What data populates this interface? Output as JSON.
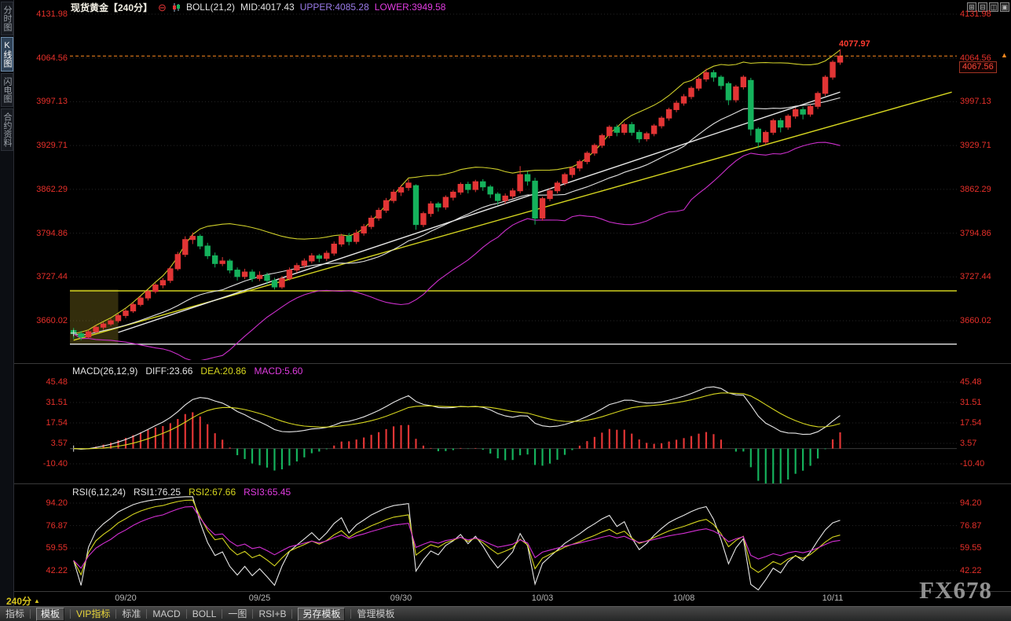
{
  "window": {
    "layout_icons": [
      {
        "name": "quad-layout-icon",
        "glyph": "⊞"
      },
      {
        "name": "horizontal-split-icon",
        "glyph": "⊟"
      },
      {
        "name": "vertical-split-icon",
        "glyph": "◫"
      },
      {
        "name": "single-view-icon",
        "glyph": "▣"
      }
    ]
  },
  "sidebar": {
    "tabs": [
      {
        "key": "time-chart",
        "label": "分时图",
        "selected": false
      },
      {
        "key": "kline-chart",
        "label": "K线图",
        "selected": true
      },
      {
        "key": "lightning-chart",
        "label": "闪电图",
        "selected": false
      },
      {
        "key": "contract-info",
        "label": "合约资料",
        "selected": false
      }
    ]
  },
  "header": {
    "title": "现货黄金【240分】",
    "collapse_glyph": "⊖",
    "indicator": {
      "name": "BOLL(21,2)",
      "mid_label": "MID:4017.43",
      "upper_label": "UPPER:4085.28",
      "lower_label": "LOWER:3949.58"
    }
  },
  "macd_header": {
    "name": "MACD(26,12,9)",
    "diff_label": "DIFF:23.66",
    "dea_label": "DEA:20.86",
    "macd_label": "MACD:5.60"
  },
  "rsi_header": {
    "name": "RSI(6,12,24)",
    "rsi1_label": "RSI1:76.25",
    "rsi2_label": "RSI2:67.66",
    "rsi3_label": "RSI3:65.45"
  },
  "price_badge": {
    "value": "4067.56",
    "arrow_glyph": "▲"
  },
  "annotations": {
    "high_label": "4077.97"
  },
  "status_bar": {
    "period": "240分",
    "arrow_glyph": "▲"
  },
  "watermark": "FX678",
  "toolbar": {
    "items": [
      {
        "key": "indicators",
        "label": "指标"
      },
      {
        "key": "templates",
        "label": "模板",
        "style": "button"
      },
      {
        "key": "vip-indicators",
        "label": "VIP指标",
        "style": "vip"
      },
      {
        "key": "standard",
        "label": "标准"
      },
      {
        "key": "macd",
        "label": "MACD"
      },
      {
        "key": "boll",
        "label": "BOLL"
      },
      {
        "key": "one-chart",
        "label": "一图"
      },
      {
        "key": "rsi-b",
        "label": "RSI+B"
      },
      {
        "key": "save-template",
        "label": "另存模板",
        "style": "button"
      },
      {
        "key": "manage-templates",
        "label": "管理模板"
      }
    ]
  },
  "chart_data": {
    "type": "candlestick",
    "symbol": "现货黄金",
    "period": "240分",
    "last_price": 4067.56,
    "session_high": 4077.97,
    "price_axis_range": [
      3660.02,
      4131.98
    ],
    "price_axis_ticks": [
      "4131.98",
      "4064.56",
      "3997.13",
      "3929.71",
      "3862.29",
      "3794.86",
      "3727.44",
      "3660.02"
    ],
    "x_ticks": [
      {
        "index": 7,
        "label": "09/20"
      },
      {
        "index": 25,
        "label": "09/25"
      },
      {
        "index": 44,
        "label": "09/30"
      },
      {
        "index": 63,
        "label": "10/03"
      },
      {
        "index": 82,
        "label": "10/08"
      },
      {
        "index": 102,
        "label": "10/11"
      }
    ],
    "boll": {
      "period": 21,
      "width": 2,
      "mid": 4017.43,
      "upper": 4085.28,
      "lower": 3949.58
    },
    "macd": {
      "fast": 12,
      "slow": 26,
      "signal": 9,
      "diff": 23.66,
      "dea": 20.86,
      "macd": 5.6,
      "axis_ticks": [
        "45.48",
        "31.51",
        "17.54",
        "3.57",
        "-10.40"
      ]
    },
    "rsi": {
      "periods": [
        6,
        12,
        24
      ],
      "rsi1": 76.25,
      "rsi2": 67.66,
      "rsi3": 65.45,
      "axis_ticks": [
        "94.20",
        "76.87",
        "59.55",
        "42.22"
      ]
    },
    "colors": {
      "up": "#e23535",
      "down": "#15b25c",
      "boll_upper": "#cfcf2a",
      "boll_mid": "#e0e0e0",
      "boll_lower": "#cc2fcc",
      "diff": "#e8e8e8",
      "dea": "#d6d61f",
      "rsi1": "#e8e8e8",
      "rsi2": "#d6d61f",
      "rsi3": "#d42fd4",
      "axis_text": "#e8302a",
      "last_price_line": "#ff8b1f",
      "trend_yellow": "#d6d620",
      "trend_white": "#e8e8e8"
    },
    "overlays": {
      "hlines": [
        {
          "price": 3706,
          "color": "#cfcf1f"
        },
        {
          "price": 3624,
          "color": "#e8e8e8"
        }
      ],
      "trendlines": [
        {
          "from": [
            0,
            3630
          ],
          "to": [
            118,
            4012
          ],
          "color": "#d6d620"
        },
        {
          "from": [
            6,
            3642
          ],
          "to": [
            103,
            4012
          ],
          "color": "#e8e8e8"
        }
      ],
      "zone": {
        "from_index": 0,
        "to_index": 5.5,
        "price_top": 3708,
        "price_bottom": 3624,
        "color": "rgba(170,150,40,0.30)"
      },
      "markers": [
        {
          "panel": "main",
          "index": 0,
          "value": 3641
        },
        {
          "panel": "macd",
          "index": 0,
          "value": 0
        }
      ]
    },
    "candles": [
      [
        3645,
        3649,
        3632,
        3640
      ],
      [
        3640,
        3644,
        3630,
        3635
      ],
      [
        3635,
        3646,
        3633,
        3643
      ],
      [
        3643,
        3653,
        3641,
        3650
      ],
      [
        3650,
        3658,
        3646,
        3655
      ],
      [
        3655,
        3663,
        3652,
        3660
      ],
      [
        3660,
        3671,
        3657,
        3668
      ],
      [
        3668,
        3678,
        3664,
        3675
      ],
      [
        3675,
        3688,
        3672,
        3685
      ],
      [
        3685,
        3698,
        3682,
        3695
      ],
      [
        3695,
        3708,
        3691,
        3705
      ],
      [
        3705,
        3718,
        3702,
        3715
      ],
      [
        3715,
        3726,
        3710,
        3722
      ],
      [
        3722,
        3744,
        3718,
        3740
      ],
      [
        3740,
        3766,
        3737,
        3762
      ],
      [
        3762,
        3790,
        3758,
        3785
      ],
      [
        3785,
        3796,
        3778,
        3790
      ],
      [
        3790,
        3793,
        3770,
        3775
      ],
      [
        3775,
        3780,
        3755,
        3760
      ],
      [
        3760,
        3765,
        3742,
        3748
      ],
      [
        3748,
        3758,
        3744,
        3752
      ],
      [
        3752,
        3755,
        3733,
        3738
      ],
      [
        3738,
        3742,
        3722,
        3728
      ],
      [
        3728,
        3740,
        3724,
        3735
      ],
      [
        3735,
        3739,
        3720,
        3725
      ],
      [
        3725,
        3736,
        3721,
        3730
      ],
      [
        3730,
        3734,
        3716,
        3722
      ],
      [
        3722,
        3726,
        3708,
        3712
      ],
      [
        3712,
        3729,
        3709,
        3725
      ],
      [
        3725,
        3742,
        3722,
        3738
      ],
      [
        3738,
        3749,
        3734,
        3745
      ],
      [
        3745,
        3756,
        3741,
        3752
      ],
      [
        3752,
        3764,
        3748,
        3760
      ],
      [
        3760,
        3763,
        3750,
        3756
      ],
      [
        3756,
        3768,
        3752,
        3764
      ],
      [
        3764,
        3782,
        3760,
        3778
      ],
      [
        3778,
        3794,
        3774,
        3790
      ],
      [
        3790,
        3795,
        3776,
        3782
      ],
      [
        3782,
        3800,
        3778,
        3795
      ],
      [
        3795,
        3809,
        3791,
        3805
      ],
      [
        3805,
        3822,
        3801,
        3818
      ],
      [
        3818,
        3834,
        3814,
        3830
      ],
      [
        3830,
        3849,
        3826,
        3845
      ],
      [
        3845,
        3862,
        3841,
        3858
      ],
      [
        3858,
        3869,
        3852,
        3865
      ],
      [
        3865,
        3878,
        3860,
        3872
      ],
      [
        3868,
        3870,
        3800,
        3808
      ],
      [
        3808,
        3828,
        3804,
        3825
      ],
      [
        3825,
        3844,
        3820,
        3840
      ],
      [
        3840,
        3843,
        3828,
        3835
      ],
      [
        3835,
        3853,
        3831,
        3850
      ],
      [
        3850,
        3861,
        3845,
        3858
      ],
      [
        3858,
        3873,
        3854,
        3870
      ],
      [
        3870,
        3874,
        3856,
        3862
      ],
      [
        3862,
        3877,
        3858,
        3874
      ],
      [
        3874,
        3878,
        3860,
        3866
      ],
      [
        3866,
        3869,
        3849,
        3855
      ],
      [
        3855,
        3858,
        3838,
        3845
      ],
      [
        3845,
        3856,
        3840,
        3852
      ],
      [
        3852,
        3864,
        3848,
        3860
      ],
      [
        3860,
        3898,
        3856,
        3885
      ],
      [
        3885,
        3890,
        3868,
        3875
      ],
      [
        3875,
        3880,
        3808,
        3818
      ],
      [
        3818,
        3851,
        3814,
        3848
      ],
      [
        3848,
        3864,
        3844,
        3860
      ],
      [
        3860,
        3875,
        3856,
        3872
      ],
      [
        3872,
        3888,
        3868,
        3885
      ],
      [
        3885,
        3898,
        3880,
        3895
      ],
      [
        3895,
        3908,
        3890,
        3905
      ],
      [
        3905,
        3921,
        3901,
        3918
      ],
      [
        3918,
        3933,
        3914,
        3930
      ],
      [
        3930,
        3948,
        3926,
        3945
      ],
      [
        3945,
        3961,
        3941,
        3958
      ],
      [
        3958,
        3962,
        3944,
        3950
      ],
      [
        3950,
        3965,
        3946,
        3962
      ],
      [
        3962,
        3966,
        3945,
        3950
      ],
      [
        3950,
        3954,
        3934,
        3940
      ],
      [
        3940,
        3951,
        3936,
        3948
      ],
      [
        3948,
        3963,
        3944,
        3960
      ],
      [
        3960,
        3975,
        3956,
        3972
      ],
      [
        3972,
        3988,
        3968,
        3985
      ],
      [
        3985,
        3999,
        3981,
        3995
      ],
      [
        3995,
        4009,
        3991,
        4005
      ],
      [
        4005,
        4021,
        4001,
        4018
      ],
      [
        4018,
        4035,
        4014,
        4032
      ],
      [
        4032,
        4048,
        4028,
        4042
      ],
      [
        4042,
        4046,
        4028,
        4035
      ],
      [
        4035,
        4038,
        4016,
        4022
      ],
      [
        4025,
        4028,
        3992,
        4000
      ],
      [
        4000,
        4023,
        3996,
        4020
      ],
      [
        4020,
        4038,
        4016,
        4035
      ],
      [
        4030,
        4034,
        3945,
        3955
      ],
      [
        3955,
        3958,
        3926,
        3935
      ],
      [
        3935,
        3953,
        3931,
        3950
      ],
      [
        3950,
        3971,
        3946,
        3968
      ],
      [
        3968,
        3972,
        3950,
        3958
      ],
      [
        3958,
        3978,
        3954,
        3975
      ],
      [
        3975,
        3988,
        3971,
        3985
      ],
      [
        3985,
        3989,
        3970,
        3978
      ],
      [
        3978,
        3993,
        3974,
        3990
      ],
      [
        3990,
        4013,
        3986,
        4010
      ],
      [
        4010,
        4038,
        4006,
        4035
      ],
      [
        4035,
        4061,
        4031,
        4058
      ],
      [
        4058,
        4077.97,
        4054,
        4067.56
      ]
    ]
  }
}
